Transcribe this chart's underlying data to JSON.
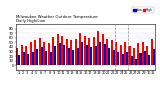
{
  "title": "Milwaukee Weather Outdoor Temperature",
  "subtitle": "Daily High/Low",
  "high_color": "#ff0000",
  "low_color": "#0000cc",
  "background_color": "#ffffff",
  "ylim": [
    -10,
    90
  ],
  "yticks": [
    0,
    10,
    20,
    30,
    40,
    50,
    60,
    70,
    80
  ],
  "days": [
    1,
    2,
    3,
    4,
    5,
    6,
    7,
    8,
    9,
    10,
    11,
    12,
    13,
    14,
    15,
    16,
    17,
    18,
    19,
    20,
    21,
    22,
    23,
    24,
    25,
    26,
    27,
    28,
    29,
    30,
    31
  ],
  "highs": [
    38,
    45,
    42,
    50,
    55,
    60,
    52,
    48,
    62,
    68,
    65,
    58,
    55,
    58,
    70,
    65,
    60,
    62,
    75,
    68,
    58,
    55,
    52,
    45,
    50,
    42,
    38,
    48,
    52,
    42,
    58
  ],
  "lows": [
    22,
    28,
    24,
    30,
    35,
    40,
    32,
    28,
    42,
    48,
    44,
    38,
    34,
    37,
    50,
    44,
    40,
    42,
    52,
    46,
    38,
    34,
    30,
    24,
    28,
    20,
    14,
    26,
    32,
    22,
    36
  ],
  "dashed_lines": [
    22.5,
    25.5
  ],
  "bar_width": 0.45
}
